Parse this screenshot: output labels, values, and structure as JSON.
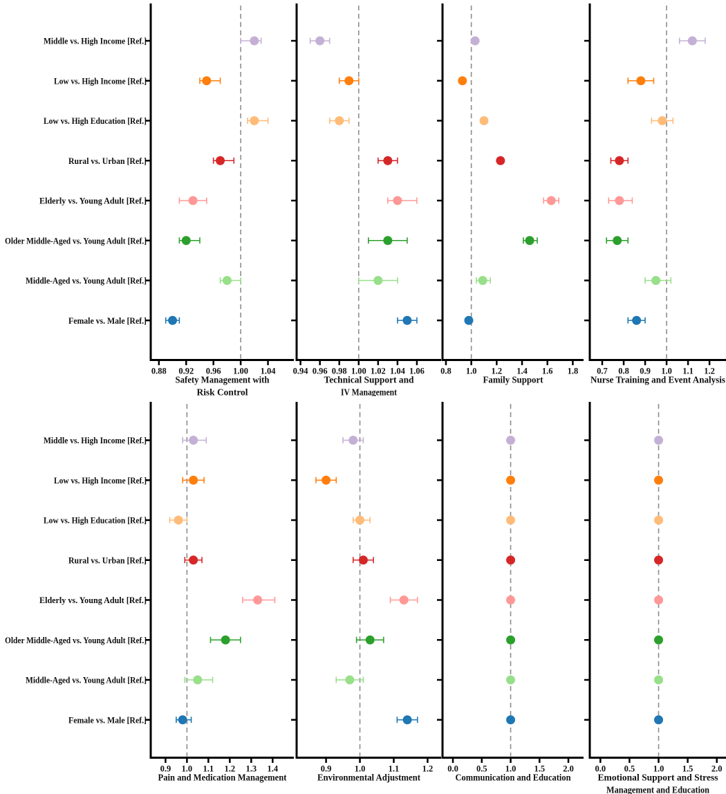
{
  "figure_name": "forest-plots-of-odds-ratios-by-care-domain",
  "reference_note": "dashed vertical reference line at 1.0 in every panel",
  "styles": {
    "background": "#ffffff",
    "axis_color": "#000000",
    "ref_line_color": "#8c8c8c",
    "text_color": "#111111"
  },
  "chart_data": {
    "type": "scatter",
    "subtype": "forest-dot-whisker",
    "estimates_format": "[odds_ratio, ci_low, ci_high] per category, category order matches categories[]",
    "reference_line_x": 1.0,
    "categories": [
      "Middle vs. High Income [Ref.]",
      "Low vs. High Income [Ref.]",
      "Low vs. High Education [Ref.]",
      "Rural vs. Urban [Ref.]",
      "Elderly vs. Young Adult [Ref.]",
      "Older Middle-Aged vs. Young Adult [Ref.]",
      "Middle-Aged vs. Young Adult [Ref.]",
      "Female vs. Male [Ref.]"
    ],
    "category_colors": [
      "#c5b0d5",
      "#ff7f0e",
      "#ffbb78",
      "#d62728",
      "#ff9896",
      "#2ca02c",
      "#98df8a",
      "#1f77b4"
    ],
    "panels": [
      {
        "id": "safety-management-with-risk-control",
        "title_lines": [
          "Safety Management with",
          "Risk Control"
        ],
        "grid": {
          "row": 0,
          "col": 0
        },
        "xlim": [
          0.868,
          1.078
        ],
        "ticks": [
          0.88,
          0.92,
          0.96,
          1.0,
          1.04
        ],
        "tick_decimals": 2,
        "estimates": [
          [
            1.02,
            1.0,
            1.03
          ],
          [
            0.95,
            0.94,
            0.97
          ],
          [
            1.02,
            1.01,
            1.04
          ],
          [
            0.97,
            0.96,
            0.99
          ],
          [
            0.93,
            0.91,
            0.95
          ],
          [
            0.92,
            0.91,
            0.94
          ],
          [
            0.98,
            0.97,
            1.0
          ],
          [
            0.9,
            0.89,
            0.91
          ]
        ]
      },
      {
        "id": "technical-support-and-iv-management",
        "title_lines": [
          "Technical Support and",
          "IV Management"
        ],
        "grid": {
          "row": 0,
          "col": 1
        },
        "xlim": [
          0.936,
          1.085
        ],
        "ticks": [
          0.94,
          0.96,
          0.98,
          1.0,
          1.02,
          1.04,
          1.06
        ],
        "tick_decimals": 2,
        "estimates": [
          [
            0.96,
            0.95,
            0.97
          ],
          [
            0.99,
            0.98,
            1.0
          ],
          [
            0.98,
            0.97,
            0.99
          ],
          [
            1.03,
            1.02,
            1.04
          ],
          [
            1.04,
            1.03,
            1.06
          ],
          [
            1.03,
            1.01,
            1.05
          ],
          [
            1.02,
            1.0,
            1.04
          ],
          [
            1.05,
            1.04,
            1.06
          ]
        ]
      },
      {
        "id": "family-support",
        "title_lines": [
          "Family Support"
        ],
        "grid": {
          "row": 0,
          "col": 2
        },
        "xlim": [
          0.773,
          1.885
        ],
        "ticks": [
          0.8,
          1.0,
          1.2,
          1.4,
          1.6,
          1.8
        ],
        "tick_decimals": 1,
        "estimates": [
          [
            1.03,
            1.02,
            1.04
          ],
          [
            0.93,
            0.92,
            0.94
          ],
          [
            1.1,
            1.08,
            1.12
          ],
          [
            1.23,
            1.21,
            1.25
          ],
          [
            1.63,
            1.57,
            1.69
          ],
          [
            1.46,
            1.41,
            1.52
          ],
          [
            1.09,
            1.04,
            1.15
          ],
          [
            0.98,
            0.96,
            1.0
          ]
        ]
      },
      {
        "id": "nurse-training-and-event-analysis",
        "title_lines": [
          "Nurse Training and Event Analysis"
        ],
        "grid": {
          "row": 0,
          "col": 3
        },
        "xlim": [
          0.642,
          1.277
        ],
        "ticks": [
          0.7,
          0.8,
          0.9,
          1.0,
          1.1,
          1.2
        ],
        "tick_decimals": 1,
        "estimates": [
          [
            1.12,
            1.06,
            1.18
          ],
          [
            0.88,
            0.82,
            0.94
          ],
          [
            0.98,
            0.93,
            1.03
          ],
          [
            0.78,
            0.74,
            0.82
          ],
          [
            0.78,
            0.73,
            0.84
          ],
          [
            0.77,
            0.72,
            0.82
          ],
          [
            0.95,
            0.9,
            1.02
          ],
          [
            0.86,
            0.82,
            0.9
          ]
        ]
      },
      {
        "id": "pain-and-medication-management",
        "title_lines": [
          "Pain and Medication Management"
        ],
        "grid": {
          "row": 1,
          "col": 0
        },
        "xlim": [
          0.831,
          1.499
        ],
        "ticks": [
          0.9,
          1.0,
          1.1,
          1.2,
          1.3,
          1.4
        ],
        "tick_decimals": 1,
        "estimates": [
          [
            1.03,
            0.98,
            1.09
          ],
          [
            1.03,
            0.98,
            1.08
          ],
          [
            0.96,
            0.92,
            1.0
          ],
          [
            1.03,
            0.99,
            1.07
          ],
          [
            1.33,
            1.26,
            1.41
          ],
          [
            1.18,
            1.11,
            1.25
          ],
          [
            1.05,
            0.99,
            1.12
          ],
          [
            0.98,
            0.95,
            1.02
          ]
        ]
      },
      {
        "id": "environmental-adjustment",
        "title_lines": [
          "Environmental Adjustment"
        ],
        "grid": {
          "row": 1,
          "col": 1
        },
        "xlim": [
          0.813,
          1.24
        ],
        "ticks": [
          0.9,
          1.0,
          1.1,
          1.2
        ],
        "tick_decimals": 1,
        "estimates": [
          [
            0.98,
            0.95,
            1.01
          ],
          [
            0.9,
            0.87,
            0.93
          ],
          [
            1.0,
            0.98,
            1.03
          ],
          [
            1.01,
            0.98,
            1.04
          ],
          [
            1.13,
            1.09,
            1.17
          ],
          [
            1.03,
            0.99,
            1.07
          ],
          [
            0.97,
            0.93,
            1.01
          ],
          [
            1.14,
            1.11,
            1.17
          ]
        ]
      },
      {
        "id": "communication-and-education",
        "title_lines": [
          "Communication and Education"
        ],
        "grid": {
          "row": 1,
          "col": 2
        },
        "xlim": [
          -0.18,
          2.263
        ],
        "ticks": [
          0.0,
          0.5,
          1.0,
          1.5,
          2.0
        ],
        "tick_decimals": 1,
        "estimates": [
          [
            1.0,
            1.0,
            1.0
          ],
          [
            1.0,
            1.0,
            1.0
          ],
          [
            1.0,
            1.0,
            1.0
          ],
          [
            1.0,
            1.0,
            1.0
          ],
          [
            1.0,
            1.0,
            1.0
          ],
          [
            1.0,
            1.0,
            1.0
          ],
          [
            1.0,
            1.0,
            1.0
          ],
          [
            1.0,
            1.0,
            1.0
          ]
        ]
      },
      {
        "id": "emotional-support-and-stress-management-and-education",
        "title_lines": [
          "Emotional Support and Stress",
          "Management and Education"
        ],
        "grid": {
          "row": 1,
          "col": 3
        },
        "xlim": [
          -0.182,
          2.158
        ],
        "ticks": [
          0.0,
          0.5,
          1.0,
          1.5,
          2.0
        ],
        "tick_decimals": 1,
        "estimates": [
          [
            1.0,
            1.0,
            1.0
          ],
          [
            1.0,
            1.0,
            1.0
          ],
          [
            1.0,
            1.0,
            1.0
          ],
          [
            1.0,
            1.0,
            1.0
          ],
          [
            1.0,
            1.0,
            1.0
          ],
          [
            1.0,
            1.0,
            1.0
          ],
          [
            1.0,
            1.0,
            1.0
          ],
          [
            1.0,
            1.0,
            1.0
          ]
        ]
      }
    ]
  }
}
